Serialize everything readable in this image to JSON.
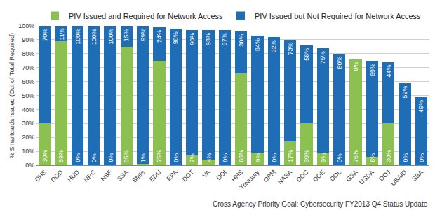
{
  "chart_data": {
    "type": "bar",
    "stacked": true,
    "data_labels": true,
    "grid": true,
    "legend": "top",
    "y_label": "% Smartcards Issued (Out of Total Required)",
    "annotations": [
      "Cross Agency Priority Goal: Cybersecurity FY2013 Q4 Status Update"
    ],
    "categories": [
      "DHS",
      "DOD",
      "HUD",
      "NRC",
      "NSF",
      "SSA",
      "State",
      "EDU",
      "EPA",
      "DOT",
      "VA",
      "DOI",
      "HHS",
      "Treasury",
      "OPM",
      "NASA",
      "DOC",
      "DOE",
      "DOL",
      "GSA",
      "USDA",
      "DOJ",
      "USAID",
      "SBA"
    ],
    "series": [
      {
        "name": "PIV Issued and Required for Network Access",
        "color": "#8cc152",
        "values": [
          30,
          89,
          0,
          0,
          0,
          85,
          1,
          75,
          0,
          7,
          4,
          0,
          66,
          9,
          0,
          17,
          30,
          9,
          0,
          76,
          6,
          30,
          0,
          0
        ],
        "value_labels": [
          "30%",
          "89%",
          "0%",
          "0%",
          "0%",
          "85%",
          "1%",
          "75%",
          "0%",
          "7%",
          "4%",
          "0%",
          "66%",
          "9%",
          "0%",
          "17%",
          "30%",
          "9%",
          "0%",
          "76%",
          "6%",
          "30%",
          "0%",
          "0%"
        ]
      },
      {
        "name": "PIV Issued but Not Required for Network Access",
        "color": "#1f6db5",
        "values": [
          70,
          11,
          100,
          100,
          100,
          15,
          99,
          24,
          98,
          90,
          93,
          97,
          30,
          84,
          92,
          73,
          56,
          75,
          80,
          0,
          69,
          44,
          59,
          49
        ],
        "value_labels": [
          "70%",
          "11%",
          "100%",
          "100%",
          "100%",
          "15%",
          "99%",
          "24%",
          "98%",
          "90%",
          "93%",
          "97%",
          "30%",
          "84%",
          "92%",
          "73%",
          "56%",
          "75%",
          "80%",
          "0%",
          "69%",
          "44%",
          "59%",
          "49%"
        ]
      }
    ],
    "ylim": [
      0,
      100
    ],
    "yticks": [
      {
        "value": 0,
        "label": "0%"
      },
      {
        "value": 10,
        "label": "10%"
      },
      {
        "value": 20,
        "label": "20%"
      },
      {
        "value": 30,
        "label": "30%"
      },
      {
        "value": 40,
        "label": "40%"
      },
      {
        "value": 50,
        "label": "50%"
      },
      {
        "value": 60,
        "label": "60%"
      },
      {
        "value": 70,
        "label": "70%"
      },
      {
        "value": 80,
        "label": "80%"
      },
      {
        "value": 90,
        "label": "90%"
      },
      {
        "value": 100,
        "label": "100%"
      }
    ]
  }
}
